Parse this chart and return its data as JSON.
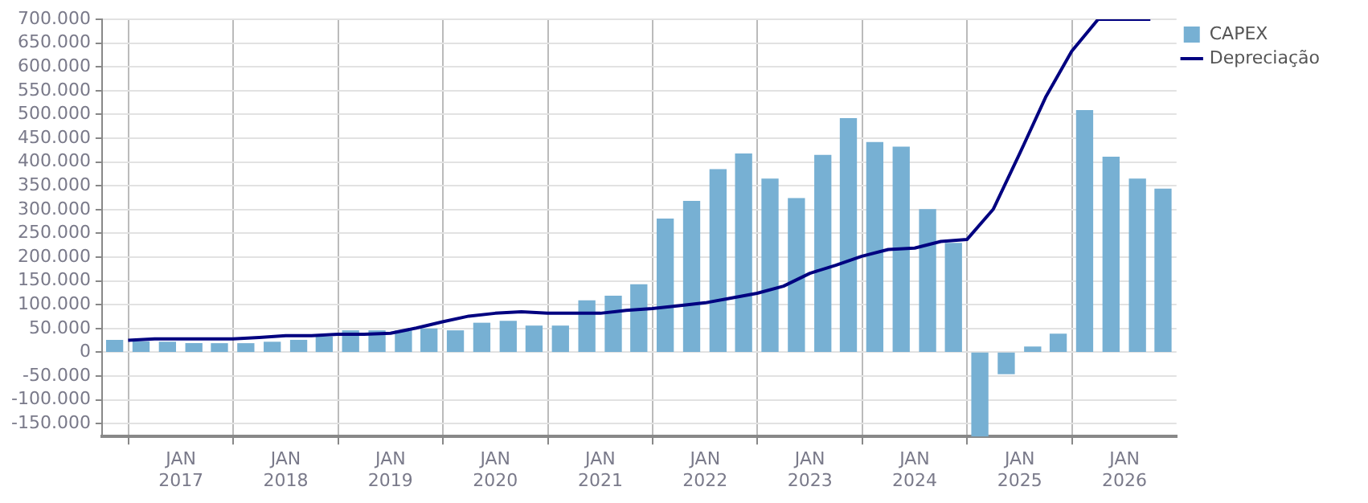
{
  "chart_data": {
    "type": "bar",
    "x": [
      "2016-05-15",
      "2016-08-15",
      "2016-11-15",
      "2017-02-15",
      "2017-05-15",
      "2017-08-15",
      "2017-11-15",
      "2018-02-15",
      "2018-05-15",
      "2018-08-15",
      "2018-11-15",
      "2019-02-15",
      "2019-05-15",
      "2019-08-15",
      "2019-11-15",
      "2020-02-15",
      "2020-05-15",
      "2020-08-15",
      "2020-11-15",
      "2021-02-15",
      "2021-05-15",
      "2021-08-15",
      "2021-11-15",
      "2022-02-15",
      "2022-05-15",
      "2022-08-15",
      "2022-11-15",
      "2023-02-15",
      "2023-05-15",
      "2023-08-15",
      "2023-11-15",
      "2024-02-15",
      "2024-05-15",
      "2024-08-15",
      "2024-11-15",
      "2025-02-15",
      "2025-05-15",
      "2025-08-15",
      "2025-11-15",
      "2026-02-15",
      "2026-05-15"
    ],
    "series": [
      {
        "name": "CAPEX",
        "color": "#77b0d3",
        "values": [
          25000,
          22000,
          21000,
          18000,
          18000,
          18000,
          21000,
          25000,
          32000,
          45000,
          45000,
          45000,
          49000,
          45000,
          61000,
          65000,
          55000,
          55000,
          108000,
          118000,
          142000,
          280000,
          317000,
          384000,
          417000,
          364000,
          323000,
          414000,
          491000,
          441000,
          431000,
          300000,
          229000,
          -177000,
          -45000,
          11000,
          38000,
          508000,
          410000,
          364000,
          343000
        ]
      },
      {
        "name": "Depreciação",
        "type": "line",
        "color": "#000080",
        "x": [
          "2016-07-01",
          "2016-10-01",
          "2017-01-01",
          "2017-04-01",
          "2017-07-01",
          "2017-10-01",
          "2018-01-01",
          "2018-04-01",
          "2018-07-01",
          "2018-10-01",
          "2019-01-01",
          "2019-04-01",
          "2019-07-01",
          "2019-10-01",
          "2020-01-01",
          "2020-04-01",
          "2020-07-01",
          "2020-10-01",
          "2021-01-01",
          "2021-04-01",
          "2021-07-01",
          "2021-10-01",
          "2022-01-01",
          "2022-04-01",
          "2022-07-01",
          "2022-10-01",
          "2023-01-01",
          "2023-04-01",
          "2023-07-01",
          "2023-10-01",
          "2024-01-01",
          "2024-04-01",
          "2024-07-01",
          "2024-10-01",
          "2025-01-01",
          "2025-04-01",
          "2025-07-01",
          "2025-10-01",
          "2026-01-01",
          "2026-04-01"
        ],
        "values": [
          25000,
          28000,
          28000,
          28000,
          28000,
          31000,
          35000,
          35000,
          38000,
          38000,
          40000,
          51000,
          64000,
          76000,
          82000,
          85000,
          82000,
          82000,
          82000,
          88000,
          92000,
          98000,
          104000,
          114000,
          124000,
          139000,
          166000,
          183000,
          202000,
          216000,
          219000,
          233000,
          237000,
          301000,
          418000,
          536000,
          633000,
          700000,
          700000,
          700000
        ]
      }
    ],
    "xlim": [
      "2016-04-01",
      "2026-07-01"
    ],
    "xticks": [
      {
        "value": "2017-01-01",
        "label": "JAN 2017"
      },
      {
        "value": "2018-01-01",
        "label": "JAN 2018"
      },
      {
        "value": "2019-01-01",
        "label": "JAN 2019"
      },
      {
        "value": "2020-01-01",
        "label": "JAN 2020"
      },
      {
        "value": "2021-01-01",
        "label": "JAN 2021"
      },
      {
        "value": "2022-01-01",
        "label": "JAN 2022"
      },
      {
        "value": "2023-01-01",
        "label": "JAN 2023"
      },
      {
        "value": "2024-01-01",
        "label": "JAN 2024"
      },
      {
        "value": "2025-01-01",
        "label": "JAN 2025"
      },
      {
        "value": "2026-01-01",
        "label": "JAN 2026"
      }
    ],
    "ylim": [
      -177000,
      700000
    ],
    "yticks": [
      {
        "value": -150000,
        "label": "-150.000"
      },
      {
        "value": -100000,
        "label": "-100.000"
      },
      {
        "value": -50000,
        "label": "-50.000"
      },
      {
        "value": 0,
        "label": "0"
      },
      {
        "value": 50000,
        "label": "50.000"
      },
      {
        "value": 100000,
        "label": "100.000"
      },
      {
        "value": 150000,
        "label": "150.000"
      },
      {
        "value": 200000,
        "label": "200.000"
      },
      {
        "value": 250000,
        "label": "250.000"
      },
      {
        "value": 300000,
        "label": "300.000"
      },
      {
        "value": 350000,
        "label": "350.000"
      },
      {
        "value": 400000,
        "label": "400.000"
      },
      {
        "value": 450000,
        "label": "450.000"
      },
      {
        "value": 500000,
        "label": "500.000"
      },
      {
        "value": 550000,
        "label": "550.000"
      },
      {
        "value": 600000,
        "label": "600.000"
      },
      {
        "value": 650000,
        "label": "650.000"
      },
      {
        "value": 700000,
        "label": "700.000"
      }
    ],
    "grid": true,
    "legend": "top right",
    "marker": "none",
    "line_style": "solid"
  }
}
